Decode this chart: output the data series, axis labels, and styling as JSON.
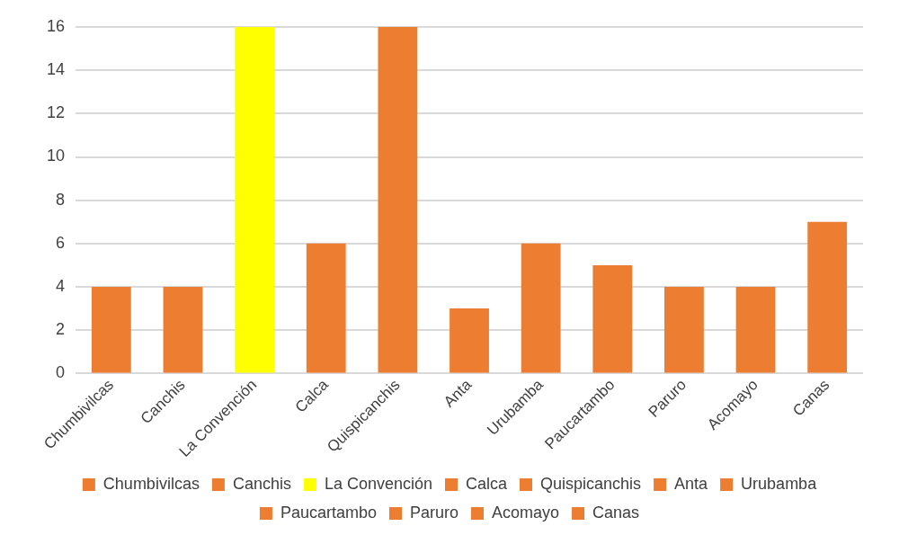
{
  "chart_data": {
    "type": "bar",
    "categories": [
      "Chumbivilcas",
      "Canchis",
      "La Convención",
      "Calca",
      "Quispicanchis",
      "Anta",
      "Urubamba",
      "Paucartambo",
      "Paruro",
      "Acomayo",
      "Canas"
    ],
    "series": [
      {
        "name": "Chumbivilcas",
        "color": "#ed7d31",
        "values": [
          4,
          null,
          null,
          null,
          null,
          null,
          null,
          null,
          null,
          null,
          null
        ]
      },
      {
        "name": "Canchis",
        "color": "#ed7d31",
        "values": [
          null,
          4,
          null,
          null,
          null,
          null,
          null,
          null,
          null,
          null,
          null
        ]
      },
      {
        "name": "La Convención",
        "color": "#ffff00",
        "values": [
          null,
          null,
          16,
          null,
          null,
          null,
          null,
          null,
          null,
          null,
          null
        ]
      },
      {
        "name": "Calca",
        "color": "#ed7d31",
        "values": [
          null,
          null,
          null,
          6,
          null,
          null,
          null,
          null,
          null,
          null,
          null
        ]
      },
      {
        "name": "Quispicanchis",
        "color": "#ed7d31",
        "values": [
          null,
          null,
          null,
          null,
          16,
          null,
          null,
          null,
          null,
          null,
          null
        ]
      },
      {
        "name": "Anta",
        "color": "#ed7d31",
        "values": [
          null,
          null,
          null,
          null,
          null,
          3,
          null,
          null,
          null,
          null,
          null
        ]
      },
      {
        "name": "Urubamba",
        "color": "#ed7d31",
        "values": [
          null,
          null,
          null,
          null,
          null,
          null,
          6,
          null,
          null,
          null,
          null
        ]
      },
      {
        "name": "Paucartambo",
        "color": "#ed7d31",
        "values": [
          null,
          null,
          null,
          null,
          null,
          null,
          null,
          5,
          null,
          null,
          null
        ]
      },
      {
        "name": "Paruro",
        "color": "#ed7d31",
        "values": [
          null,
          null,
          null,
          null,
          null,
          null,
          null,
          null,
          4,
          null,
          null
        ]
      },
      {
        "name": "Acomayo",
        "color": "#ed7d31",
        "values": [
          null,
          null,
          null,
          null,
          null,
          null,
          null,
          null,
          null,
          4,
          null
        ]
      },
      {
        "name": "Canas",
        "color": "#ed7d31",
        "values": [
          null,
          null,
          null,
          null,
          null,
          null,
          null,
          null,
          null,
          null,
          7
        ]
      }
    ],
    "ylim": [
      0,
      16
    ],
    "yticks": [
      0,
      2,
      4,
      6,
      8,
      10,
      12,
      14,
      16
    ],
    "grid": "y",
    "legend": "bottom"
  }
}
